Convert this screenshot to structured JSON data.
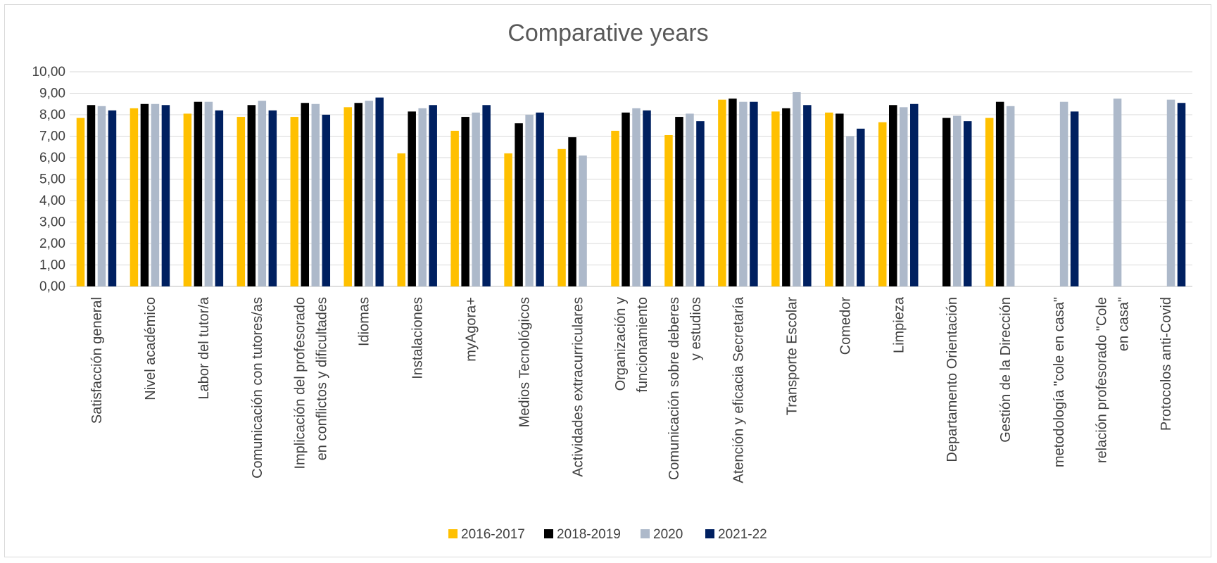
{
  "chart_data": {
    "type": "bar",
    "title": "Comparative years",
    "xlabel": "",
    "ylabel": "",
    "ylim": [
      0,
      10
    ],
    "yticks": [
      "0,00",
      "1,00",
      "2,00",
      "3,00",
      "4,00",
      "5,00",
      "6,00",
      "7,00",
      "8,00",
      "9,00",
      "10,00"
    ],
    "grid": true,
    "legend_position": "bottom",
    "categories": [
      [
        "Satisfacción general"
      ],
      [
        "Nivel académico"
      ],
      [
        "Labor del tutor/a"
      ],
      [
        "Comunicación con tutores/as"
      ],
      [
        "Implicación del profesorado",
        "en conflictos y dificultades"
      ],
      [
        "Idiomas"
      ],
      [
        "Instalaciones"
      ],
      [
        "myAgora+"
      ],
      [
        "Medios Tecnológicos"
      ],
      [
        "Actividades extracurriculares"
      ],
      [
        "Organización y",
        "funcionamiento"
      ],
      [
        "Comunicación sobre deberes",
        "y estudios"
      ],
      [
        "Atención y eficacia Secretaría"
      ],
      [
        "Transporte Escolar"
      ],
      [
        "Comedor"
      ],
      [
        "Limpieza"
      ],
      [
        "Departamento Orientación"
      ],
      [
        "Gestión de la Dirección"
      ],
      [
        "metodología \"cole en casa\""
      ],
      [
        "relación profesorado \"Cole",
        "en casa\""
      ],
      [
        "Protocolos anti-Covid"
      ]
    ],
    "series": [
      {
        "name": "2016-2017",
        "color": "#FFC000",
        "values": [
          7.85,
          8.3,
          8.05,
          7.9,
          7.9,
          8.35,
          6.2,
          7.25,
          6.2,
          6.4,
          7.25,
          7.05,
          8.7,
          8.15,
          8.1,
          7.65,
          null,
          7.85,
          null,
          null,
          null
        ]
      },
      {
        "name": "2018-2019",
        "color": "#000000",
        "values": [
          8.45,
          8.5,
          8.6,
          8.45,
          8.55,
          8.55,
          8.15,
          7.9,
          7.6,
          6.95,
          8.1,
          7.9,
          8.75,
          8.3,
          8.05,
          8.45,
          7.85,
          8.6,
          null,
          null,
          null
        ]
      },
      {
        "name": "2020",
        "color": "#ADB9CA",
        "values": [
          8.4,
          8.5,
          8.6,
          8.65,
          8.5,
          8.65,
          8.3,
          8.1,
          8.0,
          6.1,
          8.3,
          8.05,
          8.6,
          9.05,
          7.0,
          8.35,
          7.95,
          8.4,
          8.6,
          8.75,
          8.7
        ]
      },
      {
        "name": "2021-22",
        "color": "#002060",
        "values": [
          8.2,
          8.45,
          8.2,
          8.2,
          8.0,
          8.8,
          8.45,
          8.45,
          8.1,
          null,
          8.2,
          7.7,
          8.6,
          8.45,
          7.35,
          8.5,
          7.7,
          null,
          8.15,
          null,
          8.55
        ]
      }
    ]
  }
}
